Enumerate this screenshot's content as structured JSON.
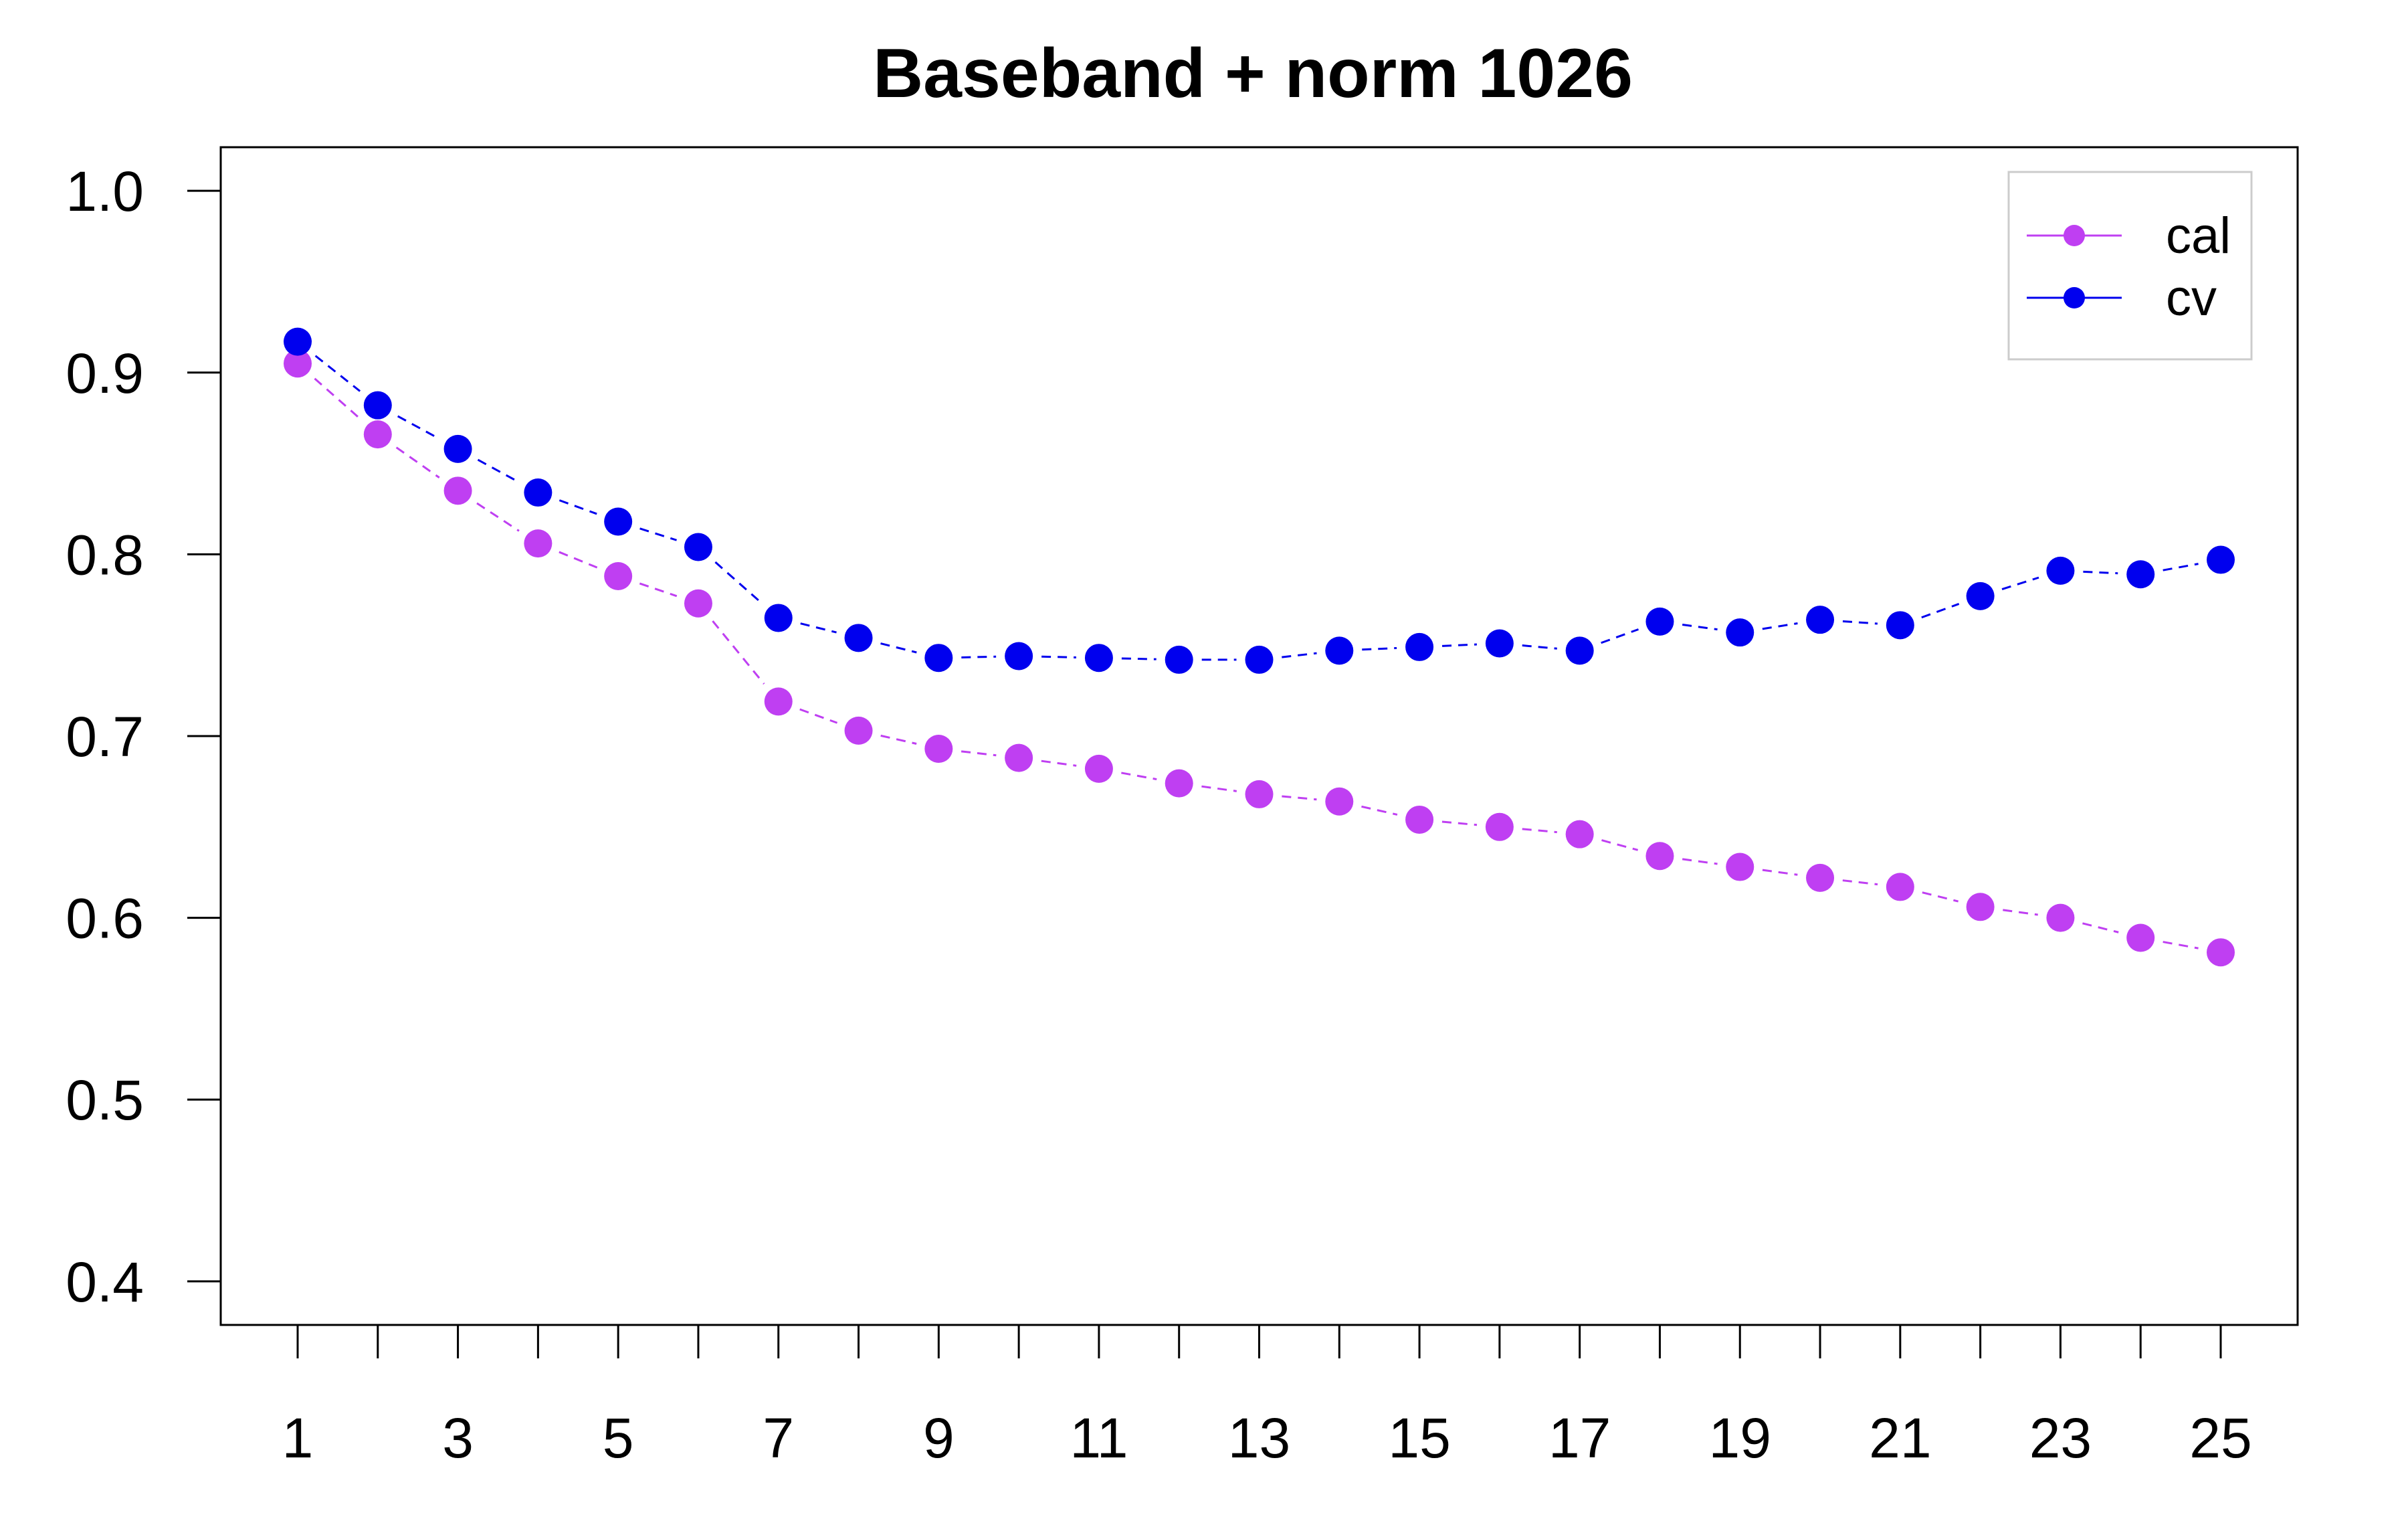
{
  "chart_data": {
    "type": "line",
    "title": "Baseband + norm 1026",
    "xlabel": "",
    "ylabel": "",
    "x": [
      1,
      2,
      3,
      4,
      5,
      6,
      7,
      8,
      9,
      10,
      11,
      12,
      13,
      14,
      15,
      16,
      17,
      18,
      19,
      20,
      21,
      22,
      23,
      24,
      25
    ],
    "x_tick_labels": [
      "1",
      "3",
      "5",
      "7",
      "9",
      "11",
      "13",
      "15",
      "17",
      "19",
      "21",
      "23",
      "25"
    ],
    "y_tick_labels": [
      "0.4",
      "0.5",
      "0.6",
      "0.7",
      "0.8",
      "0.9",
      "1.0"
    ],
    "xlim": [
      0.04,
      25.96
    ],
    "ylim": [
      0.376,
      1.024
    ],
    "legend_position": "top-right",
    "grid": false,
    "series": [
      {
        "name": "cal",
        "color": "#bf3ff2",
        "values": [
          0.905,
          0.866,
          0.835,
          0.806,
          0.788,
          0.773,
          0.719,
          0.703,
          0.693,
          0.688,
          0.682,
          0.674,
          0.668,
          0.664,
          0.654,
          0.65,
          0.646,
          0.634,
          0.628,
          0.622,
          0.617,
          0.606,
          0.6,
          0.589,
          0.581
        ]
      },
      {
        "name": "cv",
        "color": "#0000ee",
        "values": [
          0.917,
          0.882,
          0.858,
          0.834,
          0.818,
          0.804,
          0.765,
          0.754,
          0.743,
          0.744,
          0.743,
          0.742,
          0.742,
          0.747,
          0.749,
          0.751,
          0.747,
          0.763,
          0.757,
          0.764,
          0.761,
          0.777,
          0.791,
          0.789,
          0.797
        ]
      }
    ]
  }
}
